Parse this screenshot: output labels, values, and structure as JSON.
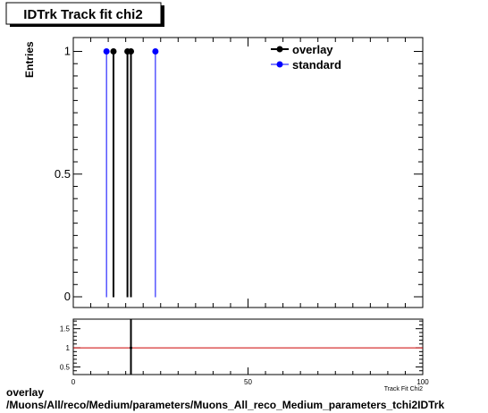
{
  "chart_data": [
    {
      "type": "scatter",
      "title": "IDTrk Track fit chi2",
      "xlabel": "Track Fit Chi2",
      "ylabel": "Entries",
      "xlim": [
        0,
        100
      ],
      "ylim": [
        0,
        1.05
      ],
      "y_ticks": [
        "0",
        "0.5",
        "1"
      ],
      "legend": "top-right",
      "series": [
        {
          "name": "overlay",
          "color": "#000000",
          "x": [
            11.5,
            15.5,
            16.5
          ],
          "y": [
            1,
            1,
            1
          ]
        },
        {
          "name": "standard",
          "color": "#0000ff",
          "x": [
            9.5,
            23.5
          ],
          "y": [
            1,
            1
          ]
        }
      ]
    },
    {
      "type": "scatter",
      "xlim": [
        0,
        100
      ],
      "ylim": [
        0.3,
        1.75
      ],
      "x_ticks": [
        "0",
        "50",
        "100"
      ],
      "y_ticks": [
        "0.5",
        "1",
        "1.5"
      ],
      "reference_line": {
        "y": 1,
        "color": "#cc0000"
      },
      "series": [
        {
          "color": "#000000",
          "x": [
            16.5
          ],
          "y": [
            1
          ]
        }
      ]
    }
  ],
  "footer": {
    "line1": "overlay",
    "line2": "/Muons/All/reco/Medium/parameters/Muons_All_reco_Medium_parameters_tchi2IDTrk"
  }
}
